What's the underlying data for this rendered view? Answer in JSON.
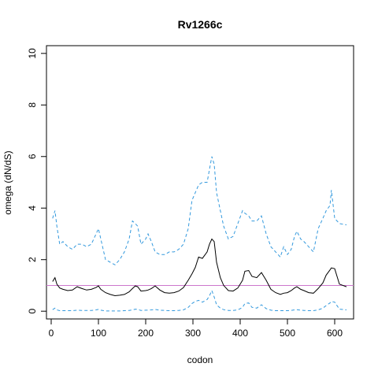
{
  "chart_data": {
    "type": "line",
    "title": "Rv1266c",
    "xlabel": "codon",
    "ylabel": "omega (dN/dS)",
    "xlim": [
      -10,
      640
    ],
    "ylim": [
      -0.3,
      10.3
    ],
    "xticks": [
      0,
      100,
      200,
      300,
      400,
      500,
      600
    ],
    "yticks": [
      0,
      2,
      4,
      6,
      8,
      10
    ],
    "grid": false,
    "reference_line": {
      "y": 1,
      "color": "#cc77cc"
    },
    "series": [
      {
        "style": "upper-ci",
        "color": "#3399dd",
        "dash": true,
        "x": [
          3,
          8,
          12,
          18,
          25,
          35,
          45,
          55,
          65,
          75,
          85,
          95,
          100,
          105,
          115,
          125,
          135,
          145,
          155,
          165,
          172,
          178,
          183,
          190,
          200,
          205,
          212,
          220,
          230,
          240,
          250,
          260,
          270,
          280,
          290,
          298,
          305,
          312,
          320,
          330,
          335,
          340,
          345,
          350,
          358,
          365,
          375,
          385,
          395,
          405,
          410,
          418,
          425,
          435,
          445,
          455,
          465,
          475,
          485,
          492,
          500,
          508,
          515,
          520,
          528,
          535,
          545,
          555,
          565,
          575,
          582,
          590,
          593,
          600,
          610,
          625
        ],
        "values": [
          3.6,
          3.9,
          3.3,
          2.6,
          2.7,
          2.5,
          2.4,
          2.6,
          2.6,
          2.5,
          2.6,
          3.0,
          3.2,
          2.8,
          2.0,
          1.9,
          1.8,
          2.0,
          2.3,
          2.8,
          3.5,
          3.4,
          3.3,
          2.6,
          2.8,
          3.0,
          2.7,
          2.3,
          2.2,
          2.2,
          2.3,
          2.3,
          2.4,
          2.6,
          3.2,
          4.3,
          4.6,
          4.9,
          5.0,
          5.0,
          5.5,
          6.0,
          5.7,
          4.6,
          3.9,
          3.3,
          2.8,
          2.9,
          3.4,
          3.9,
          3.8,
          3.7,
          3.5,
          3.5,
          3.7,
          3.0,
          2.5,
          2.3,
          2.1,
          2.5,
          2.2,
          2.4,
          2.9,
          3.1,
          2.8,
          2.7,
          2.5,
          2.3,
          3.2,
          3.6,
          3.9,
          4.1,
          4.7,
          3.6,
          3.4,
          3.35
        ]
      },
      {
        "style": "estimate",
        "color": "#000000",
        "dash": false,
        "x": [
          3,
          8,
          12,
          18,
          25,
          35,
          45,
          55,
          65,
          75,
          85,
          95,
          100,
          105,
          115,
          125,
          135,
          145,
          155,
          165,
          172,
          178,
          183,
          190,
          200,
          205,
          212,
          220,
          230,
          240,
          250,
          260,
          270,
          280,
          290,
          298,
          305,
          312,
          320,
          330,
          335,
          340,
          345,
          350,
          358,
          365,
          375,
          385,
          395,
          405,
          410,
          418,
          425,
          435,
          445,
          455,
          465,
          475,
          485,
          492,
          500,
          508,
          515,
          520,
          528,
          535,
          545,
          555,
          565,
          575,
          582,
          590,
          593,
          600,
          610,
          625
        ],
        "values": [
          1.15,
          1.3,
          1.05,
          0.9,
          0.85,
          0.8,
          0.82,
          0.95,
          0.88,
          0.82,
          0.85,
          0.92,
          0.98,
          0.85,
          0.72,
          0.65,
          0.6,
          0.62,
          0.65,
          0.75,
          0.88,
          0.98,
          0.95,
          0.78,
          0.8,
          0.82,
          0.88,
          0.98,
          0.82,
          0.72,
          0.7,
          0.72,
          0.78,
          0.92,
          1.2,
          1.45,
          1.7,
          2.1,
          2.05,
          2.3,
          2.6,
          2.8,
          2.7,
          1.9,
          1.3,
          1.0,
          0.8,
          0.78,
          0.9,
          1.2,
          1.55,
          1.58,
          1.35,
          1.3,
          1.5,
          1.2,
          0.85,
          0.72,
          0.65,
          0.7,
          0.72,
          0.8,
          0.9,
          0.95,
          0.85,
          0.8,
          0.72,
          0.7,
          0.88,
          1.1,
          1.4,
          1.6,
          1.68,
          1.65,
          1.05,
          0.95
        ]
      },
      {
        "style": "lower-ci",
        "color": "#3399dd",
        "dash": true,
        "x": [
          3,
          8,
          12,
          18,
          25,
          35,
          45,
          55,
          65,
          75,
          85,
          95,
          100,
          105,
          115,
          125,
          135,
          145,
          155,
          165,
          172,
          178,
          183,
          190,
          200,
          205,
          212,
          220,
          230,
          240,
          250,
          260,
          270,
          280,
          290,
          298,
          305,
          312,
          320,
          330,
          335,
          340,
          345,
          350,
          358,
          365,
          375,
          385,
          395,
          405,
          410,
          418,
          425,
          435,
          445,
          455,
          465,
          475,
          485,
          492,
          500,
          508,
          515,
          520,
          528,
          535,
          545,
          555,
          565,
          575,
          582,
          590,
          593,
          600,
          610,
          625
        ],
        "values": [
          0.06,
          0.12,
          0.05,
          0.02,
          0.02,
          0.02,
          0.02,
          0.04,
          0.03,
          0.03,
          0.03,
          0.05,
          0.07,
          0.04,
          0.01,
          0.01,
          0.01,
          0.01,
          0.02,
          0.03,
          0.05,
          0.08,
          0.07,
          0.03,
          0.04,
          0.04,
          0.05,
          0.07,
          0.04,
          0.03,
          0.02,
          0.02,
          0.03,
          0.05,
          0.15,
          0.3,
          0.38,
          0.42,
          0.35,
          0.45,
          0.6,
          0.8,
          0.55,
          0.25,
          0.12,
          0.06,
          0.03,
          0.03,
          0.05,
          0.15,
          0.3,
          0.32,
          0.15,
          0.12,
          0.25,
          0.1,
          0.04,
          0.02,
          0.02,
          0.02,
          0.02,
          0.03,
          0.05,
          0.06,
          0.04,
          0.03,
          0.02,
          0.02,
          0.05,
          0.12,
          0.22,
          0.32,
          0.38,
          0.35,
          0.08,
          0.05
        ]
      }
    ]
  }
}
